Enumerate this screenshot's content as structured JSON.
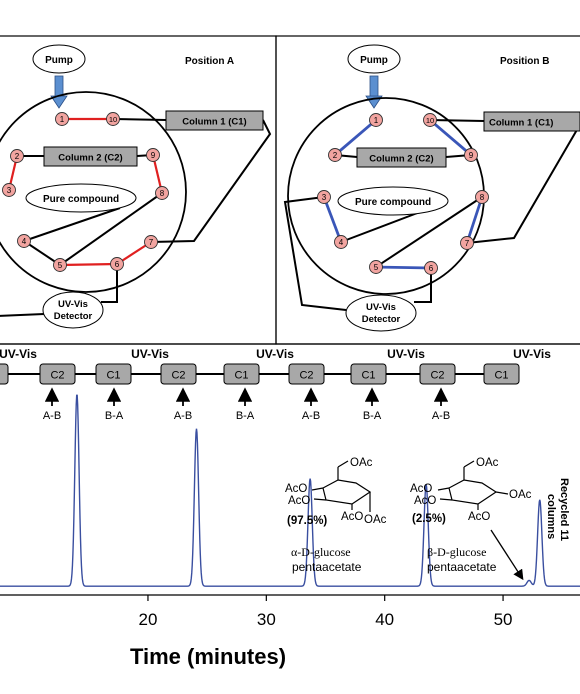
{
  "valve_a": {
    "position": "Position A",
    "pump": "Pump",
    "column1": "Column 1 (C1)",
    "column2": "Column 2 (C2)",
    "pure": "Pure compound",
    "detector_line1": "UV-Vis",
    "detector_line2": "Detector",
    "ports": [
      "1",
      "2",
      "3",
      "4",
      "5",
      "6",
      "7",
      "8",
      "9",
      "10"
    ]
  },
  "valve_b": {
    "position": "Position B",
    "pump": "Pump",
    "column1": "Column 1 (C1)",
    "column2": "Column 2 (C2)",
    "pure": "Pure compound",
    "detector_line1": "UV-Vis",
    "detector_line2": "Detector",
    "ports": [
      "1",
      "2",
      "3",
      "4",
      "5",
      "6",
      "7",
      "8",
      "9",
      "10"
    ]
  },
  "sequence": {
    "uvvis": [
      "UV-Vis",
      "UV-Vis",
      "UV-Vis",
      "UV-Vis",
      "UV-Vis"
    ],
    "boxes": [
      "",
      "C2",
      "C1",
      "C2",
      "C1",
      "C2",
      "C1",
      "C2",
      "C1"
    ],
    "switches": [
      "A-B",
      "B-A",
      "A-B",
      "B-A",
      "A-B",
      "B-A",
      "A-B"
    ]
  },
  "chromatogram": {
    "alpha_pct": "(97.5%)",
    "alpha_name_1": "α-D-glucose",
    "alpha_name_2": "pentaacetate",
    "beta_pct": "(2.5%)",
    "beta_name_1": "β-D-glucose",
    "beta_name_2": "pentaacetate",
    "recycled_1": "Recycled 11",
    "recycled_2": "columns",
    "mol_labels": {
      "oac_top": "OAc",
      "aco_1": "AcO",
      "aco_2": "AcO",
      "aco_3": "AcO",
      "oac_bottom": "OAc"
    },
    "trace_color": "#3a4fa0"
  },
  "chart_data": {
    "type": "line",
    "xlabel": "Time (minutes)",
    "ylabel": "",
    "x_ticks": [
      "20",
      "30",
      "40",
      "50"
    ],
    "xlim": [
      7.5,
      56.5
    ],
    "baseline": 0.02,
    "peaks": [
      {
        "x": 14.0,
        "height": 1.0
      },
      {
        "x": 24.1,
        "height": 0.82
      },
      {
        "x": 33.7,
        "height": 0.56
      },
      {
        "x": 43.5,
        "height": 0.53
      },
      {
        "x": 52.2,
        "height": 0.03
      },
      {
        "x": 53.1,
        "height": 0.45
      }
    ]
  }
}
